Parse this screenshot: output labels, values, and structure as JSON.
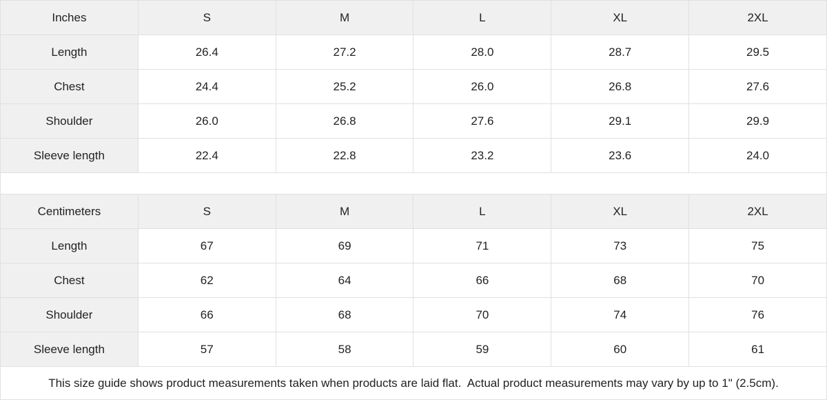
{
  "colors": {
    "header_bg": "#f0f0f0",
    "label_col_bg": "#f0f0f0",
    "cell_bg": "#ffffff",
    "border": "#e0e0e0",
    "text": "#222222"
  },
  "chart_data": [
    {
      "type": "table",
      "title": "Inches",
      "columns": [
        "Inches",
        "S",
        "M",
        "L",
        "XL",
        "2XL"
      ],
      "rows": [
        [
          "Length",
          "26.4",
          "27.2",
          "28.0",
          "28.7",
          "29.5"
        ],
        [
          "Chest",
          "24.4",
          "25.2",
          "26.0",
          "26.8",
          "27.6"
        ],
        [
          "Shoulder",
          "26.0",
          "26.8",
          "27.6",
          "29.1",
          "29.9"
        ],
        [
          "Sleeve length",
          "22.4",
          "22.8",
          "23.2",
          "23.6",
          "24.0"
        ]
      ]
    },
    {
      "type": "table",
      "title": "Centimeters",
      "columns": [
        "Centimeters",
        "S",
        "M",
        "L",
        "XL",
        "2XL"
      ],
      "rows": [
        [
          "Length",
          "67",
          "69",
          "71",
          "73",
          "75"
        ],
        [
          "Chest",
          "62",
          "64",
          "66",
          "68",
          "70"
        ],
        [
          "Shoulder",
          "66",
          "68",
          "70",
          "74",
          "76"
        ],
        [
          "Sleeve length",
          "57",
          "58",
          "59",
          "60",
          "61"
        ]
      ]
    }
  ],
  "footnote": "This size guide shows product measurements taken when products are laid flat.  Actual product measurements may vary by up to 1\" (2.5cm)."
}
